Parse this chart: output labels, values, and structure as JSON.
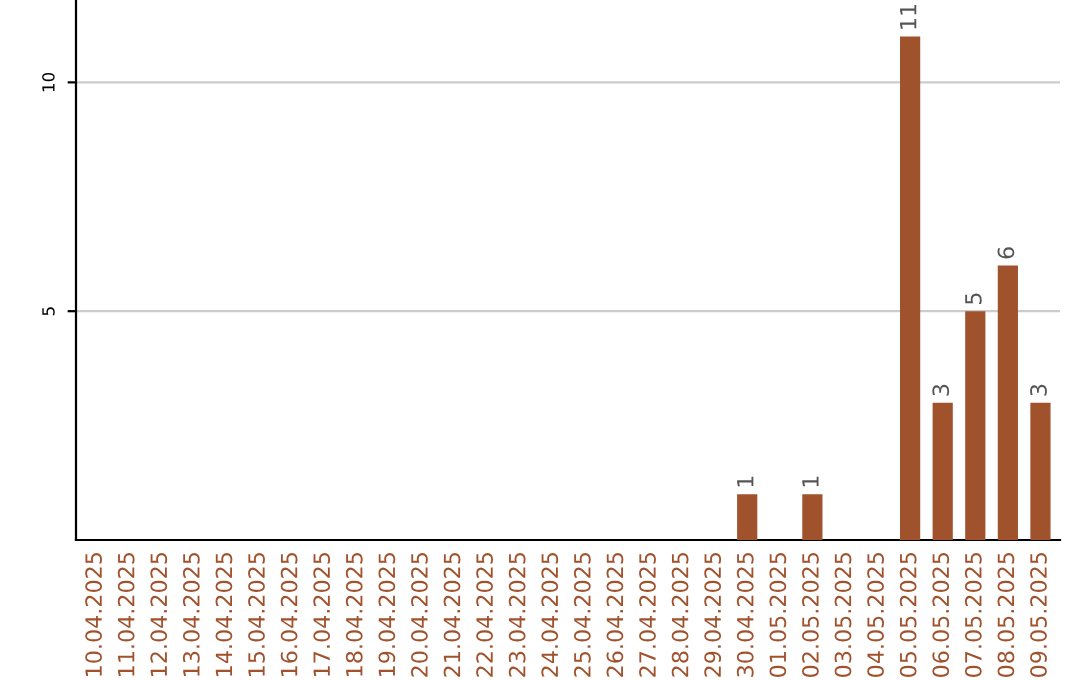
{
  "chart_data": {
    "type": "bar",
    "categories": [
      "10.04.2025",
      "11.04.2025",
      "12.04.2025",
      "13.04.2025",
      "14.04.2025",
      "15.04.2025",
      "16.04.2025",
      "17.04.2025",
      "18.04.2025",
      "19.04.2025",
      "20.04.2025",
      "21.04.2025",
      "22.04.2025",
      "23.04.2025",
      "24.04.2025",
      "25.04.2025",
      "26.04.2025",
      "27.04.2025",
      "28.04.2025",
      "29.04.2025",
      "30.04.2025",
      "01.05.2025",
      "02.05.2025",
      "03.05.2025",
      "04.05.2025",
      "05.05.2025",
      "06.05.2025",
      "07.05.2025",
      "08.05.2025",
      "09.05.2025"
    ],
    "values": [
      0,
      0,
      0,
      0,
      0,
      0,
      0,
      0,
      0,
      0,
      0,
      0,
      0,
      0,
      0,
      0,
      0,
      0,
      0,
      0,
      1,
      0,
      1,
      0,
      0,
      11,
      3,
      5,
      6,
      3
    ],
    "value_labels": [
      null,
      null,
      null,
      null,
      null,
      null,
      null,
      null,
      null,
      null,
      null,
      null,
      null,
      null,
      null,
      null,
      null,
      null,
      null,
      null,
      "1",
      null,
      "1",
      null,
      null,
      "11",
      "3",
      "5",
      "6",
      "3"
    ],
    "color": "#a0522d",
    "ylim": [
      0,
      11.8
    ],
    "yticks": [
      5,
      10
    ],
    "grid": "y"
  }
}
